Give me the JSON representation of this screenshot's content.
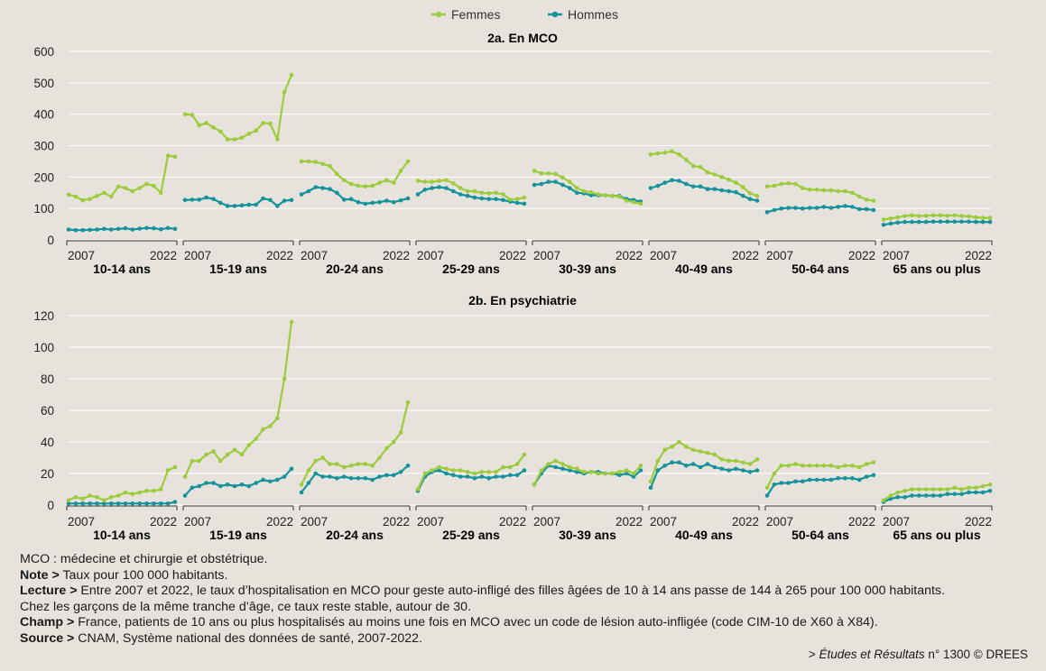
{
  "chart_data": {
    "type": "line",
    "legend": [
      {
        "name": "Femmes",
        "color": "#9ccc3c"
      },
      {
        "name": "Hommes",
        "color": "#14939b"
      }
    ],
    "legend_position": "top-center",
    "panel_first_year": "2007",
    "panel_last_year": "2022",
    "x": [
      2007,
      2008,
      2009,
      2010,
      2011,
      2012,
      2013,
      2014,
      2015,
      2016,
      2017,
      2018,
      2019,
      2020,
      2021,
      2022
    ],
    "grid": "horizontal",
    "groups": [
      "10-14 ans",
      "15-19 ans",
      "20-24 ans",
      "25-29 ans",
      "30-39 ans",
      "40-49 ans",
      "50-64 ans",
      "65 ans ou plus"
    ],
    "charts": [
      {
        "title": "2a. En MCO",
        "ylim": [
          0,
          600
        ],
        "yticks": [
          "0",
          "100",
          "200",
          "300",
          "400",
          "500",
          "600"
        ],
        "yvalues": [
          0,
          100,
          200,
          300,
          400,
          500,
          600
        ],
        "panels": [
          {
            "Femmes": [
              144,
              138,
              126,
              130,
              140,
              150,
              138,
              170,
              165,
              155,
              165,
              178,
              172,
              150,
              268,
              265
            ],
            "Hommes": [
              33,
              31,
              31,
              32,
              33,
              35,
              33,
              35,
              37,
              33,
              36,
              38,
              37,
              34,
              38,
              35
            ]
          },
          {
            "Femmes": [
              400,
              398,
              365,
              372,
              358,
              345,
              320,
              320,
              325,
              338,
              348,
              372,
              370,
              320,
              470,
              525
            ],
            "Hommes": [
              127,
              128,
              128,
              135,
              130,
              118,
              108,
              108,
              110,
              112,
              112,
              132,
              127,
              108,
              125,
              127
            ]
          },
          {
            "Femmes": [
              250,
              250,
              248,
              242,
              235,
              210,
              190,
              178,
              172,
              170,
              172,
              182,
              190,
              182,
              220,
              250
            ],
            "Hommes": [
              145,
              155,
              168,
              165,
              162,
              150,
              128,
              130,
              120,
              115,
              118,
              120,
              125,
              120,
              126,
              132
            ]
          },
          {
            "Femmes": [
              188,
              185,
              185,
              188,
              190,
              180,
              165,
              155,
              155,
              150,
              148,
              150,
              145,
              128,
              130,
              135
            ],
            "Hommes": [
              145,
              160,
              165,
              168,
              165,
              155,
              145,
              140,
              135,
              132,
              130,
              130,
              127,
              122,
              118,
              115
            ]
          },
          {
            "Femmes": [
              220,
              212,
              212,
              210,
              198,
              185,
              165,
              155,
              152,
              145,
              142,
              140,
              138,
              125,
              120,
              115
            ],
            "Hommes": [
              175,
              178,
              185,
              185,
              175,
              165,
              150,
              148,
              142,
              142,
              142,
              140,
              140,
              130,
              127,
              122
            ]
          },
          {
            "Femmes": [
              272,
              275,
              278,
              282,
              272,
              255,
              235,
              232,
              215,
              208,
              200,
              192,
              182,
              168,
              148,
              140
            ],
            "Hommes": [
              165,
              172,
              182,
              190,
              188,
              178,
              170,
              170,
              162,
              162,
              158,
              155,
              152,
              140,
              130,
              125
            ]
          },
          {
            "Femmes": [
              170,
              172,
              178,
              180,
              178,
              165,
              160,
              160,
              158,
              158,
              155,
              155,
              150,
              138,
              128,
              125
            ],
            "Hommes": [
              88,
              95,
              100,
              102,
              102,
              100,
              102,
              102,
              105,
              102,
              105,
              108,
              105,
              98,
              98,
              95
            ]
          },
          {
            "Femmes": [
              65,
              68,
              72,
              76,
              78,
              76,
              77,
              78,
              78,
              77,
              78,
              76,
              75,
              72,
              70,
              70
            ],
            "Hommes": [
              48,
              52,
              55,
              57,
              57,
              57,
              57,
              58,
              58,
              58,
              58,
              58,
              58,
              57,
              57,
              57
            ]
          }
        ]
      },
      {
        "title": "2b. En psychiatrie",
        "ylim": [
          0,
          120
        ],
        "yticks": [
          "0",
          "20",
          "40",
          "60",
          "80",
          "100",
          "120"
        ],
        "yvalues": [
          0,
          20,
          40,
          60,
          80,
          100,
          120
        ],
        "panels": [
          {
            "Femmes": [
              3,
              5,
              4,
              6,
              5,
              3,
              5,
              6,
              8,
              7,
              8,
              9,
              9,
              10,
              22,
              24
            ],
            "Hommes": [
              1,
              1,
              1,
              1,
              1,
              1,
              1,
              1,
              1,
              1,
              1,
              1,
              1,
              1,
              1,
              2
            ]
          },
          {
            "Femmes": [
              18,
              28,
              28,
              32,
              34,
              28,
              32,
              35,
              32,
              38,
              42,
              48,
              50,
              55,
              80,
              116
            ],
            "Hommes": [
              6,
              11,
              12,
              14,
              14,
              12,
              13,
              12,
              13,
              12,
              14,
              16,
              15,
              16,
              18,
              23
            ]
          },
          {
            "Femmes": [
              13,
              22,
              28,
              30,
              26,
              26,
              24,
              25,
              26,
              26,
              25,
              30,
              36,
              40,
              46,
              65
            ],
            "Hommes": [
              8,
              14,
              20,
              18,
              18,
              17,
              18,
              17,
              17,
              17,
              16,
              18,
              19,
              19,
              21,
              25
            ]
          },
          {
            "Femmes": [
              10,
              20,
              22,
              24,
              23,
              22,
              22,
              21,
              20,
              21,
              21,
              21,
              24,
              24,
              26,
              32
            ],
            "Hommes": [
              9,
              18,
              21,
              22,
              20,
              19,
              18,
              18,
              17,
              18,
              17,
              18,
              18,
              19,
              19,
              22
            ]
          },
          {
            "Femmes": [
              13,
              22,
              26,
              28,
              26,
              24,
              23,
              21,
              21,
              20,
              20,
              20,
              21,
              22,
              20,
              25
            ],
            "Hommes": [
              13,
              20,
              25,
              24,
              23,
              22,
              21,
              20,
              21,
              21,
              20,
              20,
              19,
              20,
              18,
              22
            ]
          },
          {
            "Femmes": [
              15,
              28,
              35,
              37,
              40,
              37,
              35,
              34,
              33,
              32,
              29,
              28,
              28,
              27,
              26,
              29
            ],
            "Hommes": [
              11,
              22,
              25,
              27,
              27,
              25,
              26,
              24,
              26,
              24,
              23,
              22,
              23,
              22,
              21,
              22
            ]
          },
          {
            "Femmes": [
              11,
              20,
              25,
              25,
              26,
              25,
              25,
              25,
              25,
              25,
              24,
              25,
              25,
              24,
              26,
              27
            ],
            "Hommes": [
              6,
              13,
              14,
              14,
              15,
              15,
              16,
              16,
              16,
              16,
              17,
              17,
              17,
              16,
              18,
              19
            ]
          },
          {
            "Femmes": [
              3,
              6,
              8,
              9,
              10,
              10,
              10,
              10,
              10,
              10,
              11,
              10,
              11,
              11,
              12,
              13
            ],
            "Hommes": [
              2,
              4,
              5,
              5,
              6,
              6,
              6,
              6,
              6,
              7,
              7,
              7,
              8,
              8,
              8,
              9
            ]
          }
        ]
      }
    ]
  },
  "notes": {
    "mco_label": "MCO :",
    "mco_text": " médecine et chirurgie et obstétrique.",
    "note_label": "Note >",
    "note_text": " Taux pour 100 000 habitants.",
    "lecture_label": "Lecture >",
    "lecture_text": " Entre 2007 et 2022, le taux d’hospitalisation en MCO pour geste auto-infligé des filles âgées de 10 à 14 ans passe de 144 à 265 pour 100 000 habitants.",
    "lecture_text2": "Chez les garçons de la même tranche d’âge, ce taux reste stable, autour de 30.",
    "champ_label": "Champ >",
    "champ_text": " France, patients de 10 ans ou plus hospitalisés au moins une fois en MCO avec un code de lésion auto-infligée (code CIM-10 de X60 à X84).",
    "source_label": "Source >",
    "source_text": " CNAM, Système national des données de santé, 2007-2022.",
    "credit_prefix": "> ",
    "credit_italic": "Études et Résultats",
    "credit_suffix": " n° 1300 © DREES"
  }
}
